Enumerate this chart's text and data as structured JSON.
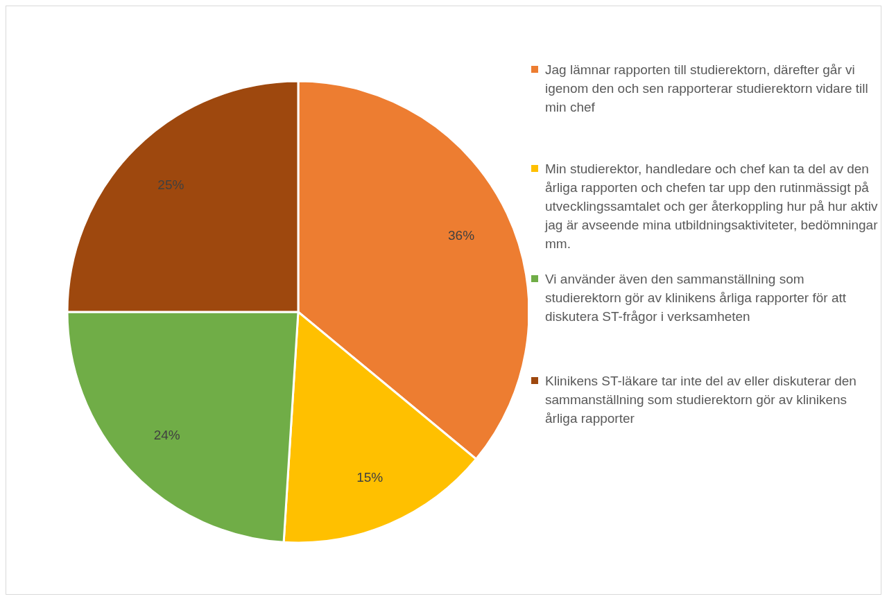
{
  "chart_data": {
    "type": "pie",
    "categories": [
      "Jag lämnar rapporten till studierektorn, därefter går vi igenom den och sen rapporterar studierektorn vidare till min chef",
      "Min studierektor, handledare och chef kan ta del av den årliga rapporten och chefen tar upp den rutinmässigt på utvecklingssamtalet och ger återkoppling hur på hur aktiv jag är avseende mina utbildningsaktiviteter, bedömningar mm.",
      "Vi använder även den sammanställning som studierektorn gör av klinikens årliga rapporter för att diskutera ST-frågor i verksamheten",
      "Klinikens ST-läkare tar inte del av eller diskuterar den sammanställning som studierektorn gör av klinikens årliga rapporter"
    ],
    "values": [
      36,
      15,
      24,
      25
    ],
    "colors": [
      "#ed7d31",
      "#ffc000",
      "#70ad47",
      "#9e480e"
    ],
    "value_labels": [
      "36%",
      "15%",
      "24%",
      "25%"
    ],
    "legend": "right"
  }
}
